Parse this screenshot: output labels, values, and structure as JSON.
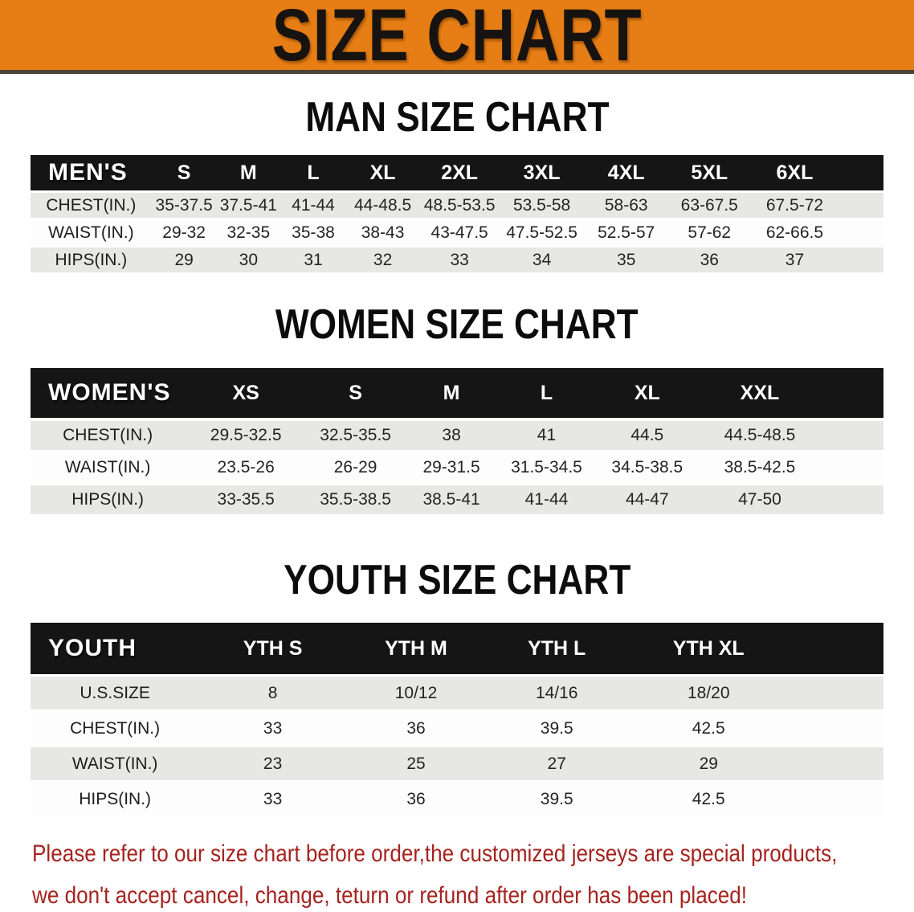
{
  "banner": {
    "title": "SIZE CHART",
    "bg_color": "#e67d15",
    "text_color": "#171310"
  },
  "sections": [
    {
      "title": "MAN SIZE CHART",
      "group_label": "MEN'S",
      "columns": [
        "S",
        "M",
        "L",
        "XL",
        "2XL",
        "3XL",
        "4XL",
        "5XL",
        "6XL"
      ],
      "rows": [
        {
          "label": "CHEST(IN.)",
          "values": [
            "35-37.5",
            "37.5-41",
            "41-44",
            "44-48.5",
            "48.5-53.5",
            "53.5-58",
            "58-63",
            "63-67.5",
            "67.5-72"
          ]
        },
        {
          "label": "WAIST(IN.)",
          "values": [
            "29-32",
            "32-35",
            "35-38",
            "38-43",
            "43-47.5",
            "47.5-52.5",
            "52.5-57",
            "57-62",
            "62-66.5"
          ]
        },
        {
          "label": "HIPS(IN.)",
          "values": [
            "29",
            "30",
            "31",
            "32",
            "33",
            "34",
            "35",
            "36",
            "37"
          ]
        }
      ]
    },
    {
      "title": "WOMEN SIZE CHART",
      "group_label": "WOMEN'S",
      "columns": [
        "XS",
        "S",
        "M",
        "L",
        "XL",
        "XXL"
      ],
      "rows": [
        {
          "label": "CHEST(IN.)",
          "values": [
            "29.5-32.5",
            "32.5-35.5",
            "38",
            "41",
            "44.5",
            "44.5-48.5"
          ]
        },
        {
          "label": "WAIST(IN.)",
          "values": [
            "23.5-26",
            "26-29",
            "29-31.5",
            "31.5-34.5",
            "34.5-38.5",
            "38.5-42.5"
          ]
        },
        {
          "label": "HIPS(IN.)",
          "values": [
            "33-35.5",
            "35.5-38.5",
            "38.5-41",
            "41-44",
            "44-47",
            "47-50"
          ]
        }
      ]
    },
    {
      "title": "YOUTH SIZE CHART",
      "group_label": "YOUTH",
      "columns": [
        "YTH S",
        "YTH M",
        "YTH L",
        "YTH XL"
      ],
      "rows": [
        {
          "label": "U.S.SIZE",
          "values": [
            "8",
            "10/12",
            "14/16",
            "18/20"
          ]
        },
        {
          "label": "CHEST(IN.)",
          "values": [
            "33",
            "36",
            "39.5",
            "42.5"
          ]
        },
        {
          "label": "WAIST(IN.)",
          "values": [
            "23",
            "25",
            "27",
            "29"
          ]
        },
        {
          "label": "HIPS(IN.)",
          "values": [
            "33",
            "36",
            "39.5",
            "42.5"
          ]
        }
      ]
    }
  ],
  "footer": {
    "lines": [
      "Please refer to our size chart before order,the customized jerseys are special products,",
      "we don't accept cancel, change, teturn or refund after order has been placed!"
    ],
    "text_color": "#a5231e"
  }
}
